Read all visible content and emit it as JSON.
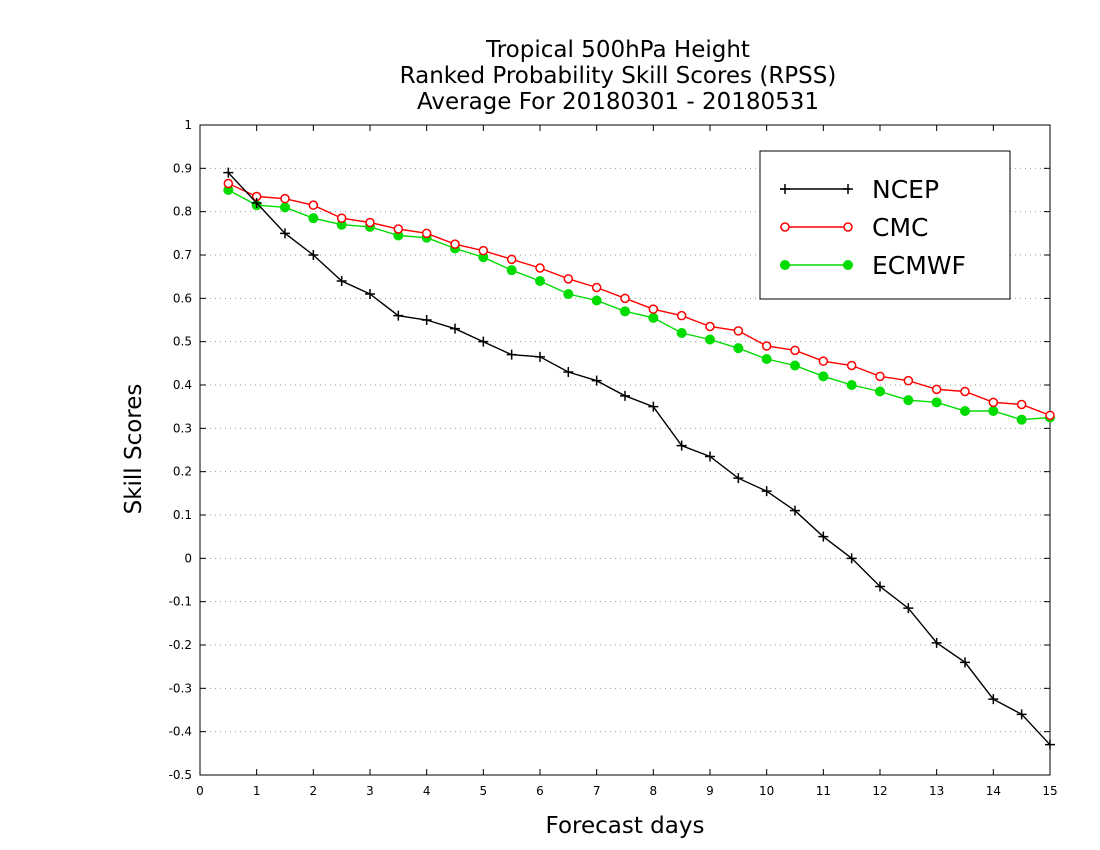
{
  "chart_data": {
    "type": "line",
    "title": [
      "Tropical 500hPa Height",
      "Ranked Probability Skill Scores (RPSS)",
      "Average For 20180301 - 20180531"
    ],
    "xlabel": "Forecast days",
    "ylabel": "Skill Scores",
    "xlim": [
      0,
      15
    ],
    "ylim": [
      -0.5,
      1
    ],
    "x_ticks": [
      "0",
      "1",
      "2",
      "3",
      "4",
      "5",
      "6",
      "7",
      "8",
      "9",
      "10",
      "11",
      "12",
      "13",
      "14",
      "15"
    ],
    "y_ticks": [
      "-0.5",
      "-0.4",
      "-0.3",
      "-0.2",
      "-0.1",
      "0",
      "0.1",
      "0.2",
      "0.3",
      "0.4",
      "0.5",
      "0.6",
      "0.7",
      "0.8",
      "0.9",
      "1"
    ],
    "grid": "horizontal-dotted",
    "legend_position": "top-right",
    "x": [
      0.5,
      1,
      1.5,
      2,
      2.5,
      3,
      3.5,
      4,
      4.5,
      5,
      5.5,
      6,
      6.5,
      7,
      7.5,
      8,
      8.5,
      9,
      9.5,
      10,
      10.5,
      11,
      11.5,
      12,
      12.5,
      13,
      13.5,
      14,
      14.5,
      15
    ],
    "series": [
      {
        "name": "NCEP",
        "color": "#000000",
        "marker": "plus",
        "values": [
          0.89,
          0.82,
          0.75,
          0.7,
          0.64,
          0.61,
          0.56,
          0.55,
          0.53,
          0.5,
          0.47,
          0.465,
          0.43,
          0.41,
          0.375,
          0.35,
          0.26,
          0.235,
          0.185,
          0.155,
          0.11,
          0.05,
          0.0,
          -0.065,
          -0.115,
          -0.195,
          -0.24,
          -0.325,
          -0.36,
          -0.43
        ]
      },
      {
        "name": "CMC",
        "color": "#ff0000",
        "marker": "open-circle",
        "values": [
          0.865,
          0.835,
          0.83,
          0.815,
          0.785,
          0.775,
          0.76,
          0.75,
          0.725,
          0.71,
          0.69,
          0.67,
          0.645,
          0.625,
          0.6,
          0.575,
          0.56,
          0.535,
          0.525,
          0.49,
          0.48,
          0.455,
          0.445,
          0.42,
          0.41,
          0.39,
          0.385,
          0.36,
          0.355,
          0.33
        ]
      },
      {
        "name": "ECMWF",
        "color": "#00dc00",
        "marker": "filled-circle",
        "values": [
          0.85,
          0.815,
          0.81,
          0.785,
          0.77,
          0.765,
          0.745,
          0.74,
          0.715,
          0.695,
          0.665,
          0.64,
          0.61,
          0.595,
          0.57,
          0.555,
          0.52,
          0.505,
          0.485,
          0.46,
          0.445,
          0.42,
          0.4,
          0.385,
          0.365,
          0.36,
          0.34,
          0.34,
          0.32,
          0.325
        ]
      }
    ]
  }
}
